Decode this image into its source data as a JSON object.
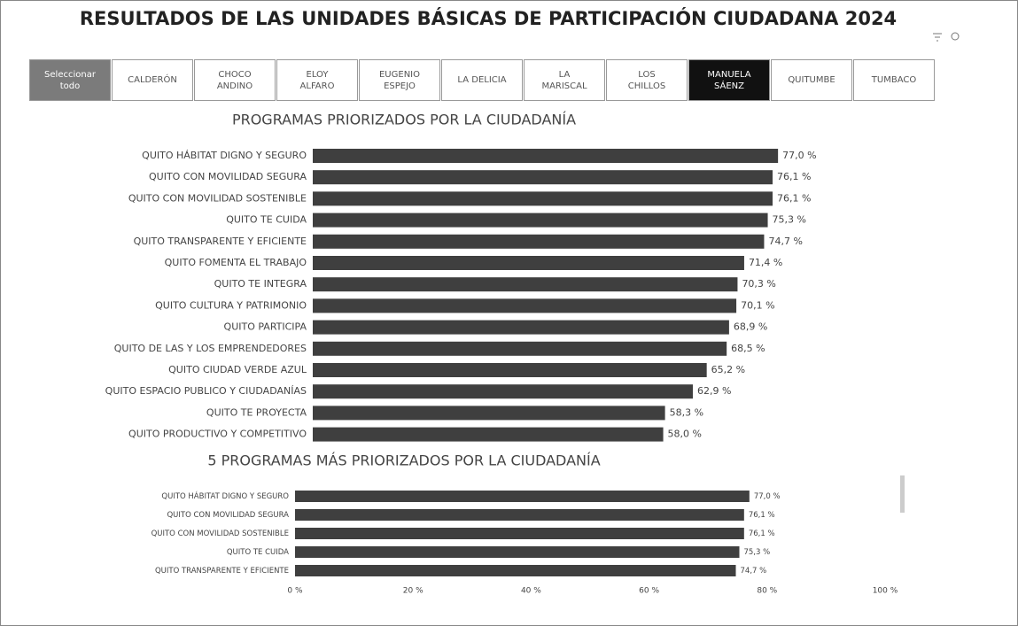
{
  "title": "RESULTADOS DE LAS UNIDADES BÁSICAS DE PARTICIPACIÓN CIUDADANA 2024",
  "select_all": "Seleccionar todo",
  "filters": [
    {
      "label": "CALDERÓN",
      "selected": false
    },
    {
      "label": "CHOCO ANDINO",
      "selected": false
    },
    {
      "label": "ELOY ALFARO",
      "selected": false
    },
    {
      "label": "EUGENIO ESPEJO",
      "selected": false
    },
    {
      "label": "LA DELICIA",
      "selected": false
    },
    {
      "label": "LA MARISCAL",
      "selected": false
    },
    {
      "label": "LOS CHILLOS",
      "selected": false
    },
    {
      "label": "MANUELA SÁENZ",
      "selected": true
    },
    {
      "label": "QUITUMBE",
      "selected": false
    },
    {
      "label": "TUMBACO",
      "selected": false
    }
  ],
  "chart_data": [
    {
      "type": "barh",
      "title": "PROGRAMAS PRIORIZADOS POR LA CIUDADANÍA",
      "color": "#3f3f3f",
      "categories": [
        "QUITO HÁBITAT DIGNO Y SEGURO",
        "QUITO CON MOVILIDAD SEGURA",
        "QUITO CON MOVILIDAD SOSTENIBLE",
        "QUITO TE CUIDA",
        "QUITO TRANSPARENTE Y EFICIENTE",
        "QUITO FOMENTA EL TRABAJO",
        "QUITO TE INTEGRA",
        "QUITO CULTURA Y PATRIMONIO",
        "QUITO PARTICIPA",
        "QUITO DE LAS Y LOS EMPRENDEDORES",
        "QUITO CIUDAD VERDE AZUL",
        "QUITO ESPACIO PUBLICO Y CIUDADANÍAS",
        "QUITO TE PROYECTA",
        "QUITO PRODUCTIVO Y COMPETITIVO"
      ],
      "values": [
        77.0,
        76.1,
        76.1,
        75.3,
        74.7,
        71.4,
        70.3,
        70.1,
        68.9,
        68.5,
        65.2,
        62.9,
        58.3,
        58.0
      ],
      "value_labels": [
        "77,0 %",
        "76,1 %",
        "76,1 %",
        "75,3 %",
        "74,7 %",
        "71,4 %",
        "70,3 %",
        "70,1 %",
        "68,9 %",
        "68,5 %",
        "65,2 %",
        "62,9 %",
        "58,3 %",
        "58,0 %"
      ],
      "xlim": [
        0,
        100
      ]
    },
    {
      "type": "barh",
      "title": "5 PROGRAMAS MÁS PRIORIZADOS POR LA CIUDADANÍA",
      "color": "#3f3f3f",
      "categories": [
        "QUITO HÁBITAT DIGNO Y SEGURO",
        "QUITO CON MOVILIDAD SEGURA",
        "QUITO CON MOVILIDAD SOSTENIBLE",
        "QUITO TE CUIDA",
        "QUITO TRANSPARENTE Y EFICIENTE"
      ],
      "values": [
        77.0,
        76.1,
        76.1,
        75.3,
        74.7
      ],
      "value_labels": [
        "77,0 %",
        "76,1 %",
        "76,1 %",
        "75,3 %",
        "74,7 %"
      ],
      "xlim": [
        0,
        100
      ],
      "xticks": [
        {
          "value": 0,
          "label": "0 %"
        },
        {
          "value": 20,
          "label": "20 %"
        },
        {
          "value": 40,
          "label": "40 %"
        },
        {
          "value": 60,
          "label": "60 %"
        },
        {
          "value": 80,
          "label": "80 %"
        },
        {
          "value": 100,
          "label": "100 %"
        }
      ]
    }
  ]
}
